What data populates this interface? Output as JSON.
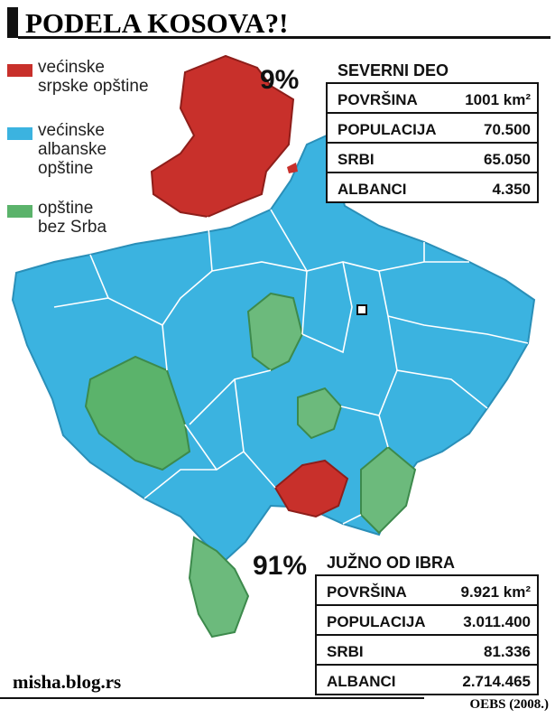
{
  "title": "PODELA KOSOVA?!",
  "legend": [
    {
      "lines": [
        "većinske",
        "srpske opštine"
      ]
    },
    {
      "lines": [
        "većinske",
        "albanske",
        "opštine"
      ]
    },
    {
      "lines": [
        "opštine",
        "bez Srba"
      ]
    }
  ],
  "map_labels": {
    "north": "9%",
    "south": "91%"
  },
  "tables": [
    {
      "title": "SEVERNI DEO",
      "rows": [
        [
          "POVRŠINA",
          "1001 km²"
        ],
        [
          "POPULACIJA",
          "70.500"
        ],
        [
          "SRBI",
          "65.050"
        ],
        [
          "ALBANCI",
          "4.350"
        ]
      ]
    },
    {
      "title": "JUŽNO OD IBRA",
      "rows": [
        [
          "POVRŠINA",
          "9.921 km²"
        ],
        [
          "POPULACIJA",
          "3.011.400"
        ],
        [
          "SRBI",
          "81.336"
        ],
        [
          "ALBANCI",
          "2.714.465"
        ]
      ]
    }
  ],
  "footer": {
    "site": "misha.blog.rs",
    "source": "OEBS (2008.)"
  }
}
